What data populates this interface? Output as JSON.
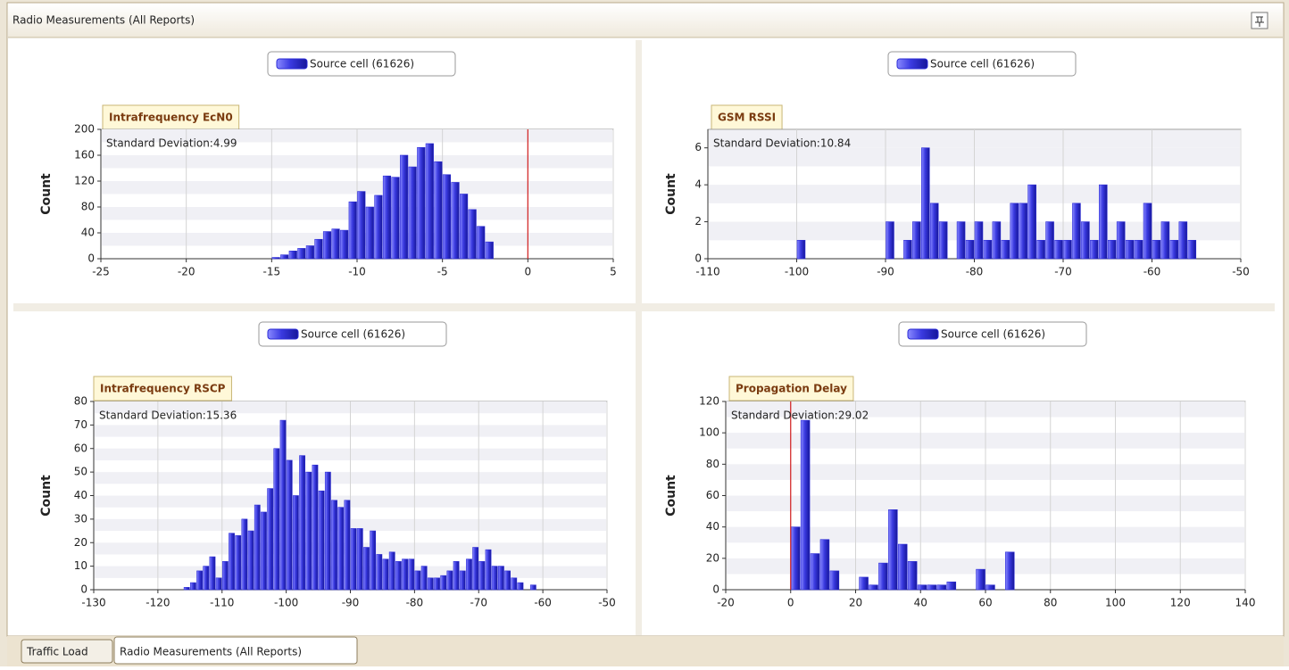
{
  "window": {
    "title": "Radio Measurements (All Reports)"
  },
  "tabs": [
    "Traffic Load",
    "Radio Measurements (All Reports)"
  ],
  "chart_data": [
    {
      "type": "histogram",
      "title": "Intrafrequency EcN0",
      "y_label": "Count",
      "annotation": "Standard Deviation:4.99",
      "bins": [
        -15,
        -14.5,
        -14,
        -13.5,
        -13,
        -12.5,
        -12,
        -11.5,
        -11,
        -10.5,
        -10,
        -9.5,
        -9,
        -8.5,
        -8,
        -7.5,
        -7,
        -6.5,
        -6,
        -5.5,
        -5,
        -4.5,
        -4,
        -3.5,
        -3,
        -2.5,
        -2
      ],
      "series": [
        {
          "name": "Source cell (61626)",
          "color": "#2b2bd6",
          "values": [
            2,
            6,
            12,
            16,
            20,
            30,
            42,
            46,
            44,
            88,
            104,
            80,
            98,
            128,
            126,
            160,
            142,
            172,
            178,
            150,
            130,
            118,
            100,
            76,
            50,
            26
          ]
        }
      ],
      "xlim": [
        -25,
        5
      ],
      "xticks": [
        -25,
        -20,
        -15,
        -10,
        -5,
        0,
        5
      ],
      "ylim": [
        0,
        200
      ],
      "yticks": [
        0,
        40,
        80,
        120,
        160,
        200
      ],
      "reference_x": 0,
      "reference_color": "#d42020",
      "grid": true
    },
    {
      "type": "histogram",
      "title": "GSM RSSI",
      "y_label": "Count",
      "annotation": "Standard Deviation:10.84",
      "bins": [
        -100,
        -99,
        -98,
        -97,
        -96,
        -95,
        -94,
        -93,
        -92,
        -91,
        -90,
        -89,
        -88,
        -87,
        -86,
        -85,
        -84,
        -83,
        -82,
        -81,
        -80,
        -79,
        -78,
        -77,
        -76,
        -75,
        -74,
        -73,
        -72,
        -71,
        -70,
        -69,
        -68,
        -67,
        -66,
        -65,
        -64,
        -63,
        -62,
        -61,
        -60,
        -59,
        -58,
        -57,
        -56,
        -55
      ],
      "series": [
        {
          "name": "Source cell (61626)",
          "color": "#2b2bd6",
          "values": [
            1,
            0,
            0,
            0,
            0,
            0,
            0,
            0,
            0,
            0,
            2,
            0,
            1,
            2,
            6,
            3,
            2,
            0,
            2,
            1,
            2,
            1,
            2,
            1,
            3,
            3,
            4,
            1,
            2,
            1,
            1,
            3,
            2,
            1,
            4,
            1,
            2,
            1,
            1,
            3,
            1,
            2,
            1,
            2,
            1
          ]
        }
      ],
      "xlim": [
        -110,
        -50
      ],
      "xticks": [
        -110,
        -100,
        -90,
        -80,
        -70,
        -60,
        -50
      ],
      "ylim": [
        0,
        7
      ],
      "yticks": [
        0,
        2,
        4,
        6
      ],
      "grid": true
    },
    {
      "type": "histogram",
      "title": "Intrafrequency RSCP",
      "y_label": "Count",
      "annotation": "Standard Deviation:15.36",
      "bins": [
        -116,
        -115,
        -114,
        -113,
        -112,
        -111,
        -110,
        -109,
        -108,
        -107,
        -106,
        -105,
        -104,
        -103,
        -102,
        -101,
        -100,
        -99,
        -98,
        -97,
        -96,
        -95,
        -94,
        -93,
        -92,
        -91,
        -90,
        -89,
        -88,
        -87,
        -86,
        -85,
        -84,
        -83,
        -82,
        -81,
        -80,
        -79,
        -78,
        -77,
        -76,
        -75,
        -74,
        -73,
        -72,
        -71,
        -70,
        -69,
        -68,
        -67,
        -66,
        -65,
        -64,
        -63,
        -62,
        -61
      ],
      "series": [
        {
          "name": "Source cell (61626)",
          "color": "#2b2bd6",
          "values": [
            1,
            3,
            8,
            10,
            14,
            5,
            12,
            24,
            23,
            30,
            25,
            36,
            33,
            43,
            60,
            72,
            55,
            40,
            57,
            50,
            53,
            42,
            50,
            38,
            35,
            38,
            26,
            26,
            18,
            25,
            15,
            13,
            16,
            12,
            13,
            13,
            8,
            10,
            5,
            5,
            6,
            8,
            12,
            8,
            13,
            18,
            12,
            17,
            10,
            10,
            8,
            5,
            3,
            0,
            2
          ]
        }
      ],
      "xlim": [
        -130,
        -50
      ],
      "xticks": [
        -130,
        -120,
        -110,
        -100,
        -90,
        -80,
        -70,
        -60,
        -50
      ],
      "ylim": [
        0,
        80
      ],
      "yticks": [
        0,
        10,
        20,
        30,
        40,
        50,
        60,
        70,
        80
      ],
      "grid": true
    },
    {
      "type": "histogram",
      "title": "Propagation Delay",
      "y_label": "Count",
      "annotation": "Standard Deviation:29.02",
      "bins": [
        0,
        3,
        6,
        9,
        12,
        15,
        18,
        21,
        24,
        27,
        30,
        33,
        36,
        39,
        42,
        45,
        48,
        51,
        54,
        57,
        60,
        63,
        66,
        69
      ],
      "series": [
        {
          "name": "Source cell (61626)",
          "color": "#2b2bd6",
          "values": [
            40,
            108,
            23,
            32,
            12,
            0,
            0,
            8,
            3,
            17,
            51,
            29,
            18,
            3,
            3,
            3,
            5,
            0,
            0,
            13,
            3,
            0,
            24
          ]
        }
      ],
      "xlim": [
        -20,
        140
      ],
      "xticks": [
        -20,
        0,
        20,
        40,
        60,
        80,
        100,
        120,
        140
      ],
      "ylim": [
        0,
        120
      ],
      "yticks": [
        0,
        20,
        40,
        60,
        80,
        100,
        120
      ],
      "reference_x": 0,
      "reference_color": "#d42020",
      "grid": true
    }
  ]
}
